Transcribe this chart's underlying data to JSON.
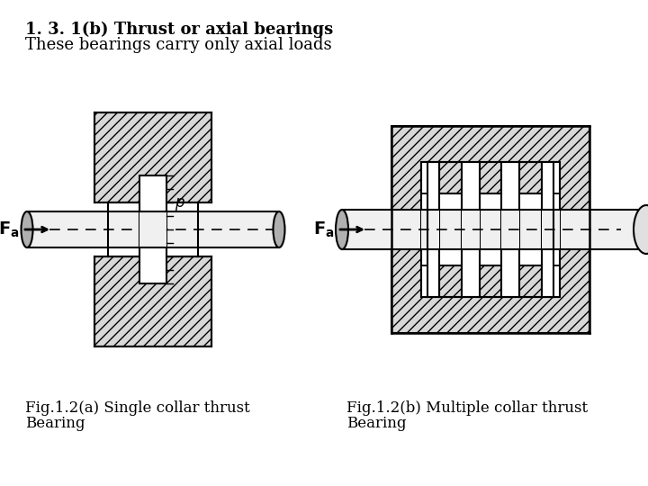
{
  "title_line1": "1. 3. 1(b) Thrust or axial bearings",
  "title_line2": "These bearings carry only axial loads",
  "caption_left_line1": "Fig.1.2(a) Single collar thrust",
  "caption_left_line2": "Bearing",
  "caption_right_line1": "Fig.1.2(b) Multiple collar thrust",
  "caption_right_line2": "Bearing",
  "bg_color": "#ffffff",
  "line_color": "#000000",
  "title_fontsize": 13,
  "caption_fontsize": 12
}
